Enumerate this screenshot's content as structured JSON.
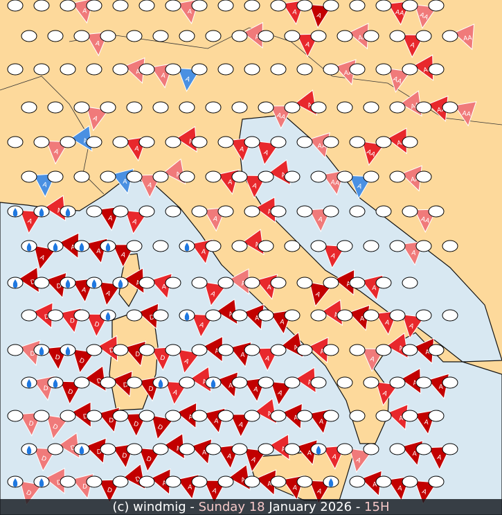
{
  "map": {
    "colors": {
      "sea": "#d8e8f2",
      "land": "#fdd99b",
      "coast": "#111111",
      "border": "#333333"
    },
    "flag_colors": {
      "1": "#f07a7a",
      "2": "#e8282c",
      "3": "#c20000",
      "4": "#4a90e2"
    },
    "legend_note": "o = ellipse, w = ellipse with rain drop, digit = flag colour, letters = flag label",
    "rows": [
      "o o o1A o o o o1A o o o o2A o3A o o o2AA o1AA o",
      "o o o1A o o o o o o1A o o2A o o1AA o o2A o o1AA",
      "o o o o o1A o1A o4A o o o o o o1AA o o1AA o2AA o",
      "o o o1A o o o o o o o1AA o2A o o o o1AA o2AA o1AA",
      "o o1A o4A o o2A o o2A o o2A o2A o o1AA o o2AA o2AA o",
      "o4A o o o4A o1A o1A o o2A o2A o2A o o1AA o4A o o1AA o",
      "w2A w2A w o3A o2A o o o1A o o2A o o1A o o o o1AA o",
      "w3A w3A w3A w3A o o w2A o o2A o o o2A o o o1A o o",
      "w3D o3D w3A w3A w3A o2A o o2A o1A o2A o o3A o3A o2A o o",
      "o2D o2D o2D w o3D o w2A o3A o3A o3A o o2A o3A o2A o2A o o",
      "o1D w3D w3D o2D o3D o2D o2A o3A o3A o2A o3A o2A o o1A o2A o3A o",
      "w1D w3D o3D o3D o3D w2A o2A w3A o3A o3A o2A o o o2A o3A o3A o",
      "o1D o1D o3D o3D o3D o3D o3A o3A o3A o2A o3A o3A o o o2A o3A o",
      "w1D o1D w3D o3D o3D o3A o3A o3A o3A o2A o3A w2A o1A o o3A o3A o",
      "w1D w1D o1D o3D o3D o3A o3A o3A o3A o3A o3A o3A w o3A o3A o3A o"
    ]
  },
  "footer": {
    "copyright": "(c) windmig - ",
    "day": "Sunday 18",
    "date": " January 2026 ",
    "sep": "- ",
    "hour": "15H"
  }
}
